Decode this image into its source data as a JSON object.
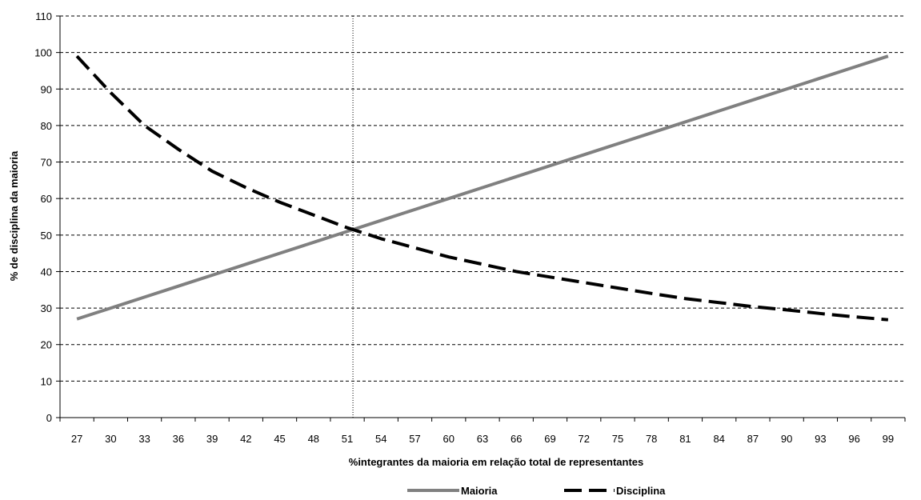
{
  "chart_data": {
    "type": "line",
    "title": "",
    "xlabel": "%integrantes da maioria em relação total de representantes",
    "ylabel": "% de disciplina da maioria",
    "categories": [
      "27",
      "30",
      "33",
      "36",
      "39",
      "42",
      "45",
      "48",
      "51",
      "54",
      "57",
      "60",
      "63",
      "66",
      "69",
      "72",
      "75",
      "78",
      "81",
      "84",
      "87",
      "90",
      "93",
      "96",
      "99"
    ],
    "ylim": [
      0,
      110
    ],
    "yticks": [
      "0",
      "10",
      "20",
      "30",
      "40",
      "50",
      "60",
      "70",
      "80",
      "90",
      "100",
      "110"
    ],
    "grid": "horizontal dashed",
    "reference_line_x": 51.5,
    "legend_position": "bottom",
    "series": [
      {
        "name": "Maioria",
        "color": "#808080",
        "style": "solid",
        "x": [
          27,
          30,
          33,
          36,
          39,
          42,
          45,
          48,
          51,
          54,
          57,
          60,
          63,
          66,
          69,
          72,
          75,
          78,
          81,
          84,
          87,
          90,
          93,
          96,
          99
        ],
        "values": [
          27,
          30,
          33,
          36,
          39,
          42,
          45,
          48,
          51,
          54,
          57,
          60,
          63,
          66,
          69,
          72,
          75,
          78,
          81,
          84,
          87,
          90,
          93,
          96,
          99
        ]
      },
      {
        "name": "Disciplina",
        "color": "#000000",
        "style": "dashed",
        "x": [
          27,
          30,
          33,
          36,
          39,
          42,
          45,
          48,
          51,
          54,
          57,
          60,
          63,
          66,
          69,
          72,
          75,
          78,
          81,
          84,
          87,
          90,
          93,
          96,
          99
        ],
        "values": [
          99,
          89,
          80,
          73.5,
          67.5,
          63,
          59,
          55.5,
          52,
          49,
          46.5,
          44,
          42,
          40,
          38.5,
          37,
          35.5,
          34,
          32.6,
          31.5,
          30.4,
          29.5,
          28.5,
          27.6,
          26.8
        ]
      }
    ]
  }
}
